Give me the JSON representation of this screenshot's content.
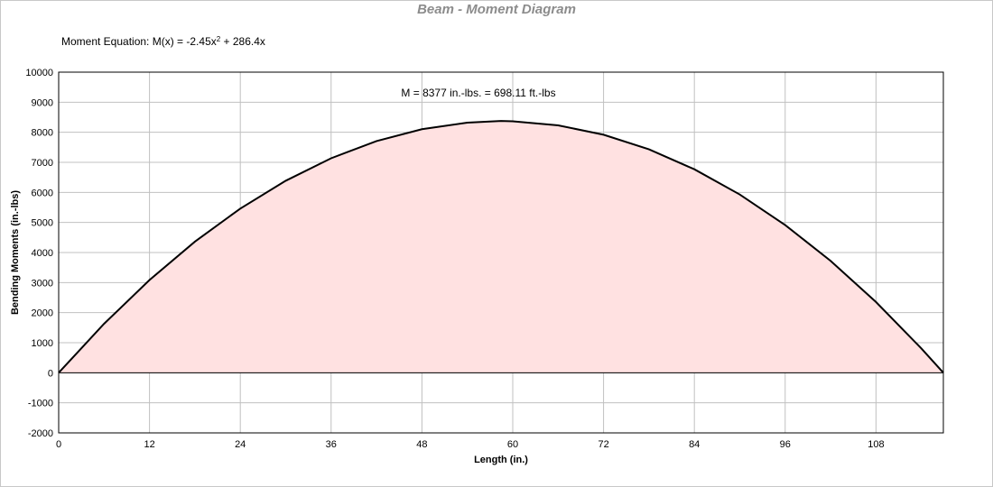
{
  "chart_data": {
    "type": "area",
    "title": "Beam - Moment Diagram",
    "equation": {
      "prefix": "Moment Equation:  M(x) = -2.45x",
      "superscript": "2",
      "suffix": " + 286.4x"
    },
    "annotation": "M = 8377 in.-lbs. = 698.11 ft.-lbs",
    "annotation_point": {
      "x": 58.45,
      "y": 8377
    },
    "xlabel": "Length (in.)",
    "ylabel": "Bending Moments (in.-lbs)",
    "xlim": [
      0,
      116.9
    ],
    "ylim": [
      -2000,
      10000
    ],
    "x_ticks": [
      0,
      12,
      24,
      36,
      48,
      60,
      72,
      84,
      96,
      108
    ],
    "y_ticks": [
      -2000,
      -1000,
      0,
      1000,
      2000,
      3000,
      4000,
      5000,
      6000,
      7000,
      8000,
      9000,
      10000
    ],
    "grid": true,
    "series": [
      {
        "x": [
          0,
          6,
          12,
          18,
          24,
          30,
          36,
          42,
          48,
          54,
          58.45,
          60,
          66,
          72,
          78,
          84,
          90,
          96,
          102,
          108,
          114,
          116.9
        ],
        "y": [
          0,
          1630,
          3084,
          4362,
          5462,
          6387,
          7135,
          7707,
          8102,
          8321,
          8377,
          8364,
          8230,
          7919,
          7433,
          6769,
          5930,
          4914,
          3722,
          2354,
          808,
          0
        ]
      }
    ],
    "colors": {
      "line": "#000000",
      "fill": "#ffe1e1",
      "grid": "#c0c0c0",
      "title": "#8c8c8c"
    }
  }
}
